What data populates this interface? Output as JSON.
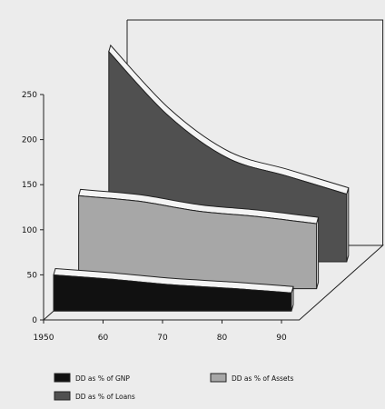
{
  "chart_data": {
    "type": "area",
    "style": "3d-ribbon",
    "categories": [
      "1950",
      "60",
      "70",
      "80",
      "90"
    ],
    "x": [
      1950,
      1960,
      1970,
      1980,
      1990
    ],
    "ylim": [
      0,
      250
    ],
    "yticks": [
      "0",
      "50",
      "100",
      "150",
      "200",
      "250"
    ],
    "grid": false,
    "legend_position": "bottom",
    "series": [
      {
        "name": "DD as % of GNP",
        "color": "#111111",
        "values": [
          40,
          35,
          29,
          25,
          20
        ]
      },
      {
        "name": "DD as % of Assets",
        "color": "#a7a7a7",
        "values": [
          103,
          97,
          86,
          80,
          72
        ]
      },
      {
        "name": "DD as % of Loans",
        "color": "#505050",
        "values": [
          233,
          162,
          115,
          95,
          75
        ]
      }
    ],
    "xlabel": "",
    "ylabel": "",
    "title": ""
  }
}
